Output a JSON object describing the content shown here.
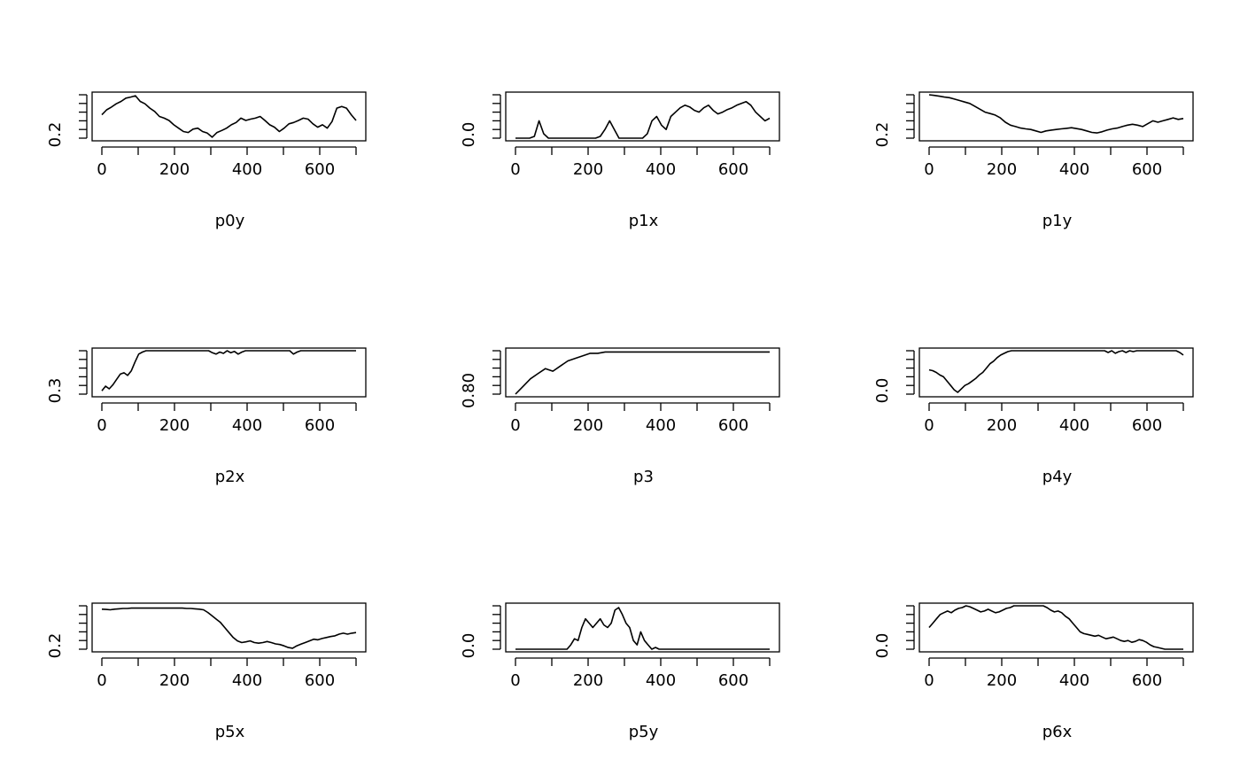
{
  "chart_data": [
    {
      "type": "line",
      "xlabel": "p0y",
      "ylabel": "",
      "title": "",
      "x_tick_labels": [
        "0",
        "200",
        "400",
        "600"
      ],
      "y_tick_labels": [
        "0.2"
      ],
      "xlim": [
        0,
        700
      ],
      "ylim": [
        0.18,
        0.31
      ],
      "series": [
        {
          "values": [
            0.25,
            0.265,
            0.273,
            0.283,
            0.29,
            0.3,
            0.303,
            0.307,
            0.29,
            0.283,
            0.27,
            0.26,
            0.245,
            0.24,
            0.233,
            0.22,
            0.21,
            0.2,
            0.197,
            0.207,
            0.21,
            0.2,
            0.195,
            0.183,
            0.197,
            0.203,
            0.21,
            0.22,
            0.227,
            0.24,
            0.233,
            0.237,
            0.24,
            0.245,
            0.233,
            0.22,
            0.213,
            0.2,
            0.21,
            0.223,
            0.227,
            0.233,
            0.24,
            0.237,
            0.223,
            0.213,
            0.22,
            0.21,
            0.23,
            0.27,
            0.275,
            0.27,
            0.25,
            0.233
          ]
        }
      ]
    },
    {
      "type": "line",
      "xlabel": "p1x",
      "ylabel": "",
      "title": "",
      "x_tick_labels": [
        "0",
        "200",
        "400",
        "600"
      ],
      "y_tick_labels": [
        "0.0"
      ],
      "xlim": [
        0,
        700
      ],
      "ylim": [
        0.0,
        0.5
      ],
      "series": [
        {
          "values": [
            0.0,
            0.0,
            0.0,
            0.0,
            0.02,
            0.2,
            0.05,
            0.0,
            0.0,
            0.0,
            0.0,
            0.0,
            0.0,
            0.0,
            0.0,
            0.0,
            0.0,
            0.0,
            0.02,
            0.1,
            0.2,
            0.1,
            0.0,
            0.0,
            0.0,
            0.0,
            0.0,
            0.0,
            0.05,
            0.2,
            0.25,
            0.15,
            0.1,
            0.25,
            0.3,
            0.35,
            0.38,
            0.36,
            0.32,
            0.3,
            0.35,
            0.38,
            0.32,
            0.28,
            0.3,
            0.33,
            0.35,
            0.38,
            0.4,
            0.42,
            0.38,
            0.3,
            0.25,
            0.2,
            0.23
          ]
        }
      ]
    },
    {
      "type": "line",
      "xlabel": "p1y",
      "ylabel": "",
      "title": "",
      "x_tick_labels": [
        "0",
        "200",
        "400",
        "600"
      ],
      "y_tick_labels": [
        "0.2"
      ],
      "xlim": [
        0,
        700
      ],
      "ylim": [
        0.18,
        0.33
      ],
      "series": [
        {
          "values": [
            0.33,
            0.328,
            0.325,
            0.322,
            0.32,
            0.315,
            0.31,
            0.305,
            0.3,
            0.29,
            0.28,
            0.27,
            0.265,
            0.26,
            0.25,
            0.235,
            0.225,
            0.22,
            0.215,
            0.212,
            0.21,
            0.205,
            0.2,
            0.205,
            0.208,
            0.21,
            0.212,
            0.214,
            0.216,
            0.213,
            0.21,
            0.205,
            0.2,
            0.198,
            0.202,
            0.208,
            0.212,
            0.215,
            0.22,
            0.225,
            0.228,
            0.225,
            0.22,
            0.23,
            0.24,
            0.235,
            0.24,
            0.245,
            0.25,
            0.245,
            0.248
          ]
        }
      ]
    },
    {
      "type": "line",
      "xlabel": "p2x",
      "ylabel": "",
      "title": "",
      "x_tick_labels": [
        "0",
        "200",
        "400",
        "600"
      ],
      "y_tick_labels": [
        "0.3"
      ],
      "xlim": [
        0,
        700
      ],
      "ylim": [
        0.3,
        0.95
      ],
      "series": [
        {
          "values": [
            0.35,
            0.42,
            0.38,
            0.44,
            0.52,
            0.6,
            0.62,
            0.58,
            0.65,
            0.78,
            0.9,
            0.93,
            0.95,
            0.95,
            0.95,
            0.95,
            0.95,
            0.95,
            0.95,
            0.95,
            0.95,
            0.95,
            0.95,
            0.95,
            0.95,
            0.95,
            0.95,
            0.95,
            0.95,
            0.95,
            0.92,
            0.9,
            0.93,
            0.91,
            0.95,
            0.92,
            0.94,
            0.9,
            0.93,
            0.95,
            0.95,
            0.95,
            0.95,
            0.95,
            0.95,
            0.95,
            0.95,
            0.95,
            0.95,
            0.95,
            0.95,
            0.95,
            0.9,
            0.93,
            0.95,
            0.95,
            0.95,
            0.95,
            0.95,
            0.95,
            0.95,
            0.95,
            0.95,
            0.95,
            0.95,
            0.95,
            0.95,
            0.95,
            0.95,
            0.95
          ]
        }
      ]
    },
    {
      "type": "line",
      "xlabel": "p3",
      "ylabel": "",
      "title": "",
      "x_tick_labels": [
        "0",
        "200",
        "400",
        "600"
      ],
      "y_tick_labels": [
        "0.80"
      ],
      "xlim": [
        0,
        700
      ],
      "ylim": [
        0.8,
        0.97
      ],
      "series": [
        {
          "values": [
            0.8,
            0.83,
            0.86,
            0.88,
            0.9,
            0.89,
            0.91,
            0.93,
            0.94,
            0.95,
            0.96,
            0.96,
            0.965,
            0.965,
            0.965,
            0.965,
            0.965,
            0.965,
            0.965,
            0.965,
            0.965,
            0.965,
            0.965,
            0.965,
            0.965,
            0.965,
            0.965,
            0.965,
            0.965,
            0.965,
            0.965,
            0.965,
            0.965,
            0.965,
            0.965
          ]
        }
      ]
    },
    {
      "type": "line",
      "xlabel": "p4y",
      "ylabel": "",
      "title": "",
      "x_tick_labels": [
        "0",
        "200",
        "400",
        "600"
      ],
      "y_tick_labels": [
        "0.0"
      ],
      "xlim": [
        0,
        700
      ],
      "ylim": [
        0.0,
        0.5
      ],
      "series": [
        {
          "values": [
            0.28,
            0.27,
            0.25,
            0.22,
            0.2,
            0.15,
            0.1,
            0.05,
            0.02,
            0.06,
            0.1,
            0.12,
            0.15,
            0.18,
            0.22,
            0.25,
            0.3,
            0.35,
            0.38,
            0.42,
            0.45,
            0.47,
            0.49,
            0.5,
            0.5,
            0.5,
            0.5,
            0.5,
            0.5,
            0.5,
            0.5,
            0.5,
            0.5,
            0.5,
            0.5,
            0.5,
            0.5,
            0.5,
            0.5,
            0.5,
            0.5,
            0.5,
            0.5,
            0.5,
            0.5,
            0.5,
            0.5,
            0.5,
            0.5,
            0.5,
            0.48,
            0.5,
            0.47,
            0.49,
            0.5,
            0.48,
            0.5,
            0.49,
            0.5,
            0.5,
            0.5,
            0.5,
            0.5,
            0.5,
            0.5,
            0.5,
            0.5,
            0.5,
            0.5,
            0.5,
            0.48,
            0.45
          ]
        }
      ]
    },
    {
      "type": "line",
      "xlabel": "p5x",
      "ylabel": "",
      "title": "",
      "x_tick_labels": [
        "0",
        "200",
        "400",
        "600"
      ],
      "y_tick_labels": [
        "0.2"
      ],
      "xlim": [
        0,
        700
      ],
      "ylim": [
        0.18,
        0.31
      ],
      "series": [
        {
          "values": [
            0.3,
            0.299,
            0.298,
            0.3,
            0.301,
            0.302,
            0.302,
            0.303,
            0.303,
            0.303,
            0.303,
            0.303,
            0.303,
            0.303,
            0.303,
            0.303,
            0.303,
            0.303,
            0.303,
            0.303,
            0.302,
            0.302,
            0.301,
            0.3,
            0.298,
            0.29,
            0.28,
            0.27,
            0.26,
            0.245,
            0.23,
            0.215,
            0.205,
            0.2,
            0.202,
            0.205,
            0.2,
            0.198,
            0.2,
            0.203,
            0.2,
            0.196,
            0.194,
            0.19,
            0.185,
            0.183,
            0.19,
            0.195,
            0.2,
            0.205,
            0.21,
            0.208,
            0.212,
            0.215,
            0.218,
            0.22,
            0.225,
            0.228,
            0.225,
            0.228,
            0.23
          ]
        }
      ]
    },
    {
      "type": "line",
      "xlabel": "p5y",
      "ylabel": "",
      "title": "",
      "x_tick_labels": [
        "0",
        "200",
        "400",
        "600"
      ],
      "y_tick_labels": [
        "0.0"
      ],
      "xlim": [
        0,
        700
      ],
      "ylim": [
        0.0,
        0.5
      ],
      "series": [
        {
          "values": [
            0.0,
            0.0,
            0.0,
            0.0,
            0.0,
            0.0,
            0.0,
            0.0,
            0.0,
            0.0,
            0.0,
            0.0,
            0.0,
            0.0,
            0.0,
            0.05,
            0.12,
            0.1,
            0.25,
            0.35,
            0.3,
            0.25,
            0.3,
            0.35,
            0.28,
            0.25,
            0.3,
            0.45,
            0.48,
            0.4,
            0.3,
            0.25,
            0.1,
            0.05,
            0.2,
            0.1,
            0.05,
            0.0,
            0.02,
            0.0,
            0.0,
            0.0,
            0.0,
            0.0,
            0.0,
            0.0,
            0.0,
            0.0,
            0.0,
            0.0,
            0.0,
            0.0,
            0.0,
            0.0,
            0.0,
            0.0,
            0.0,
            0.0,
            0.0,
            0.0,
            0.0,
            0.0,
            0.0,
            0.0,
            0.0,
            0.0,
            0.0,
            0.0,
            0.0,
            0.0
          ]
        }
      ]
    },
    {
      "type": "line",
      "xlabel": "p6x",
      "ylabel": "",
      "title": "",
      "x_tick_labels": [
        "0",
        "200",
        "400",
        "600"
      ],
      "y_tick_labels": [
        "0.0"
      ],
      "xlim": [
        0,
        700
      ],
      "ylim": [
        0.0,
        0.5
      ],
      "series": [
        {
          "values": [
            0.25,
            0.3,
            0.35,
            0.4,
            0.42,
            0.44,
            0.42,
            0.45,
            0.47,
            0.48,
            0.5,
            0.49,
            0.47,
            0.45,
            0.43,
            0.44,
            0.46,
            0.44,
            0.42,
            0.43,
            0.45,
            0.47,
            0.48,
            0.5,
            0.5,
            0.5,
            0.5,
            0.5,
            0.5,
            0.5,
            0.5,
            0.5,
            0.48,
            0.45,
            0.43,
            0.44,
            0.42,
            0.38,
            0.35,
            0.3,
            0.25,
            0.2,
            0.18,
            0.17,
            0.16,
            0.15,
            0.16,
            0.14,
            0.12,
            0.13,
            0.14,
            0.12,
            0.1,
            0.09,
            0.1,
            0.08,
            0.09,
            0.11,
            0.1,
            0.08,
            0.05,
            0.03,
            0.02,
            0.01,
            0.0,
            0.0,
            0.0,
            0.0,
            0.0,
            0.0
          ]
        }
      ]
    }
  ]
}
